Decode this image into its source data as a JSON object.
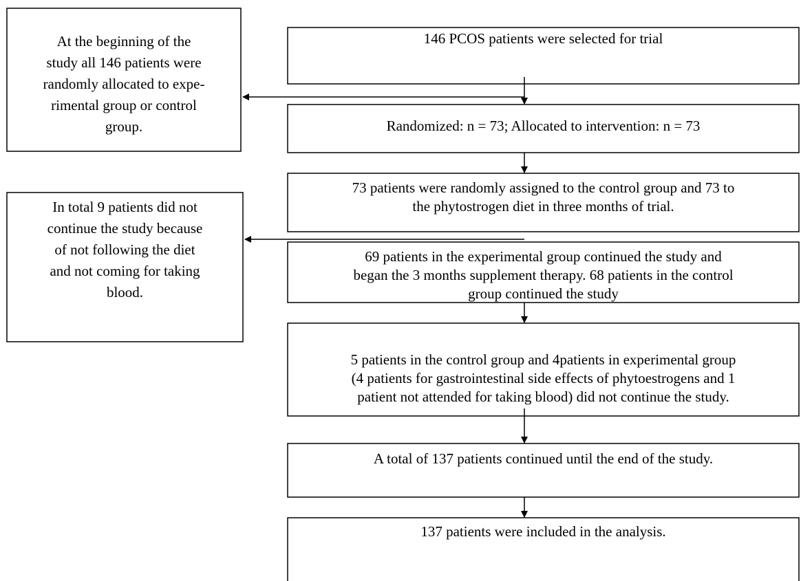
{
  "nodes": [
    {
      "lines": [
        "At the beginning of the",
        "study all 146 patients were",
        "randomly allocated to expe-",
        "rimental group or control",
        "group."
      ]
    },
    {
      "lines": [
        "146 PCOS patients were selected for trial"
      ]
    },
    {
      "lines": [
        "Randomized: n = 73; Allocated to intervention: n = 73"
      ]
    },
    {
      "lines": [
        "73 patients were randomly assigned to the control group and 73 to",
        "the phytostrogen diet in three months of trial."
      ]
    },
    {
      "lines": [
        "In total 9 patients did not",
        "continue the study because",
        "of not following the diet",
        "and not coming for taking",
        "blood."
      ]
    },
    {
      "lines": [
        "69 patients in the experimental group continued the study and",
        "began the 3 months supplement therapy. 68 patients in the control",
        "group continued the study"
      ]
    },
    {
      "lines": [
        "5 patients in the control group and 4patients in experimental group",
        "(4 patients for gastrointestinal side effects of phytoestrogens and 1",
        "patient not attended for taking blood) did not continue the study."
      ]
    },
    {
      "lines": [
        "A total of 137 patients continued until the end of the study."
      ]
    },
    {
      "lines": [
        "137 patients were included in the analysis."
      ]
    }
  ]
}
